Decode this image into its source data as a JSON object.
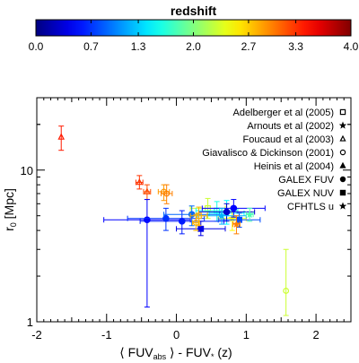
{
  "chart_data": [
    {
      "type": "colorbar",
      "title": "redshift",
      "ticks": [
        0.0,
        0.7,
        1.3,
        2.0,
        2.7,
        3.3,
        4.0
      ],
      "tick_labels": [
        "0.0",
        "0.7",
        "1.3",
        "2.0",
        "2.7",
        "3.3",
        "4.0"
      ],
      "range": [
        0.0,
        4.0
      ],
      "colormap": "jet"
    },
    {
      "type": "scatter",
      "xlabel": "⟨ FUV_abs ⟩ - FUV_* (z)",
      "xlabel_parts": {
        "open": "⟨ FUV",
        "sub": "abs",
        "mid": " ⟩ - FUV",
        "sub2": "*",
        "close": " (z)"
      },
      "ylabel": "r_0 [Mpc]",
      "ylabel_parts": {
        "main": "r",
        "sub": "0",
        "rest": " [Mpc]"
      },
      "xlim": [
        -2,
        2.5
      ],
      "ylim": [
        1,
        30
      ],
      "yscale": "log",
      "x_ticks": [
        -2,
        -1,
        0,
        1,
        2
      ],
      "x_tick_labels": [
        "-2",
        "-1",
        "0",
        "1",
        "2"
      ],
      "y_ticks": [
        1,
        10
      ],
      "y_tick_labels": [
        "1",
        "10"
      ],
      "legend_position": "top-right",
      "legend": [
        {
          "label": "Adelberger et al (2005)",
          "marker": "square-open"
        },
        {
          "label": "Arnouts et al (2002)",
          "marker": "star"
        },
        {
          "label": "Foucaud et al (2003)",
          "marker": "triangle-open"
        },
        {
          "label": "Giavalisco & Dickinson (2001)",
          "marker": "circle-open"
        },
        {
          "label": "Heinis et al (2004)",
          "marker": "triangle"
        },
        {
          "label": "GALEX FUV",
          "marker": "circle"
        },
        {
          "label": "GALEX NUV",
          "marker": "square"
        },
        {
          "label": "CFHTLS u",
          "marker": "star"
        }
      ],
      "points": [
        {
          "series": "Heinis et al (2004)",
          "marker": "triangle-open",
          "z": 3.4,
          "x": -1.65,
          "y": 16.5,
          "y_lo": 13.5,
          "y_hi": 19.5,
          "x_err": 0
        },
        {
          "series": "Foucaud et al (2003)",
          "marker": "triangle-open",
          "z": 3.3,
          "x": -0.53,
          "y": 8.3,
          "y_lo": 7.5,
          "y_hi": 9.2,
          "x_err": 0.05
        },
        {
          "series": "Foucaud et al (2003)",
          "marker": "triangle-open",
          "z": 3.2,
          "x": -0.42,
          "y": 7.2,
          "y_lo": 6.4,
          "y_hi": 8.0,
          "x_err": 0.05
        },
        {
          "series": "Giavalisco & Dickinson (2001)",
          "marker": "circle-open",
          "z": 2.9,
          "x": -0.18,
          "y": 7.2,
          "y_lo": 6.3,
          "y_hi": 8.0,
          "x_err": 0.08
        },
        {
          "series": "Giavalisco & Dickinson (2001)",
          "marker": "circle-open",
          "z": 3.0,
          "x": -0.14,
          "y": 7.0,
          "y_lo": 6.0,
          "y_hi": 8.0,
          "x_err": 0.08
        },
        {
          "series": "Adelberger et al (2005)",
          "marker": "square-open",
          "z": 2.3,
          "x": 0.45,
          "y": 5.6,
          "y_lo": 4.8,
          "y_hi": 6.5,
          "x_err": 0.25
        },
        {
          "series": "Adelberger et al (2005)",
          "marker": "square-open",
          "z": 1.6,
          "x": 0.58,
          "y": 5.4,
          "y_lo": 4.6,
          "y_hi": 6.2,
          "x_err": 0.3
        },
        {
          "series": "Arnouts et al (2002)",
          "marker": "star",
          "z": 1.5,
          "x": 0.72,
          "y": 5.2,
          "y_lo": 4.4,
          "y_hi": 6.3,
          "x_err": 0.25
        },
        {
          "series": "Arnouts et al (2002)",
          "marker": "star",
          "z": 2.5,
          "x": 0.8,
          "y": 4.8,
          "y_lo": 4.0,
          "y_hi": 5.6,
          "x_err": 0.2
        },
        {
          "series": "GALEX FUV",
          "marker": "circle",
          "z": 0.5,
          "x": -0.42,
          "y": 4.7,
          "y_lo": 1.25,
          "y_hi": 6.4,
          "x_err": 0.62
        },
        {
          "series": "GALEX FUV",
          "marker": "circle",
          "z": 0.7,
          "x": -0.15,
          "y": 4.8,
          "y_lo": 4.0,
          "y_hi": 5.6,
          "x_err": 0.55
        },
        {
          "series": "GALEX FUV",
          "marker": "circle",
          "z": 0.6,
          "x": 0.08,
          "y": 4.6,
          "y_lo": 3.8,
          "y_hi": 5.4,
          "x_err": 0.6
        },
        {
          "series": "GALEX FUV",
          "marker": "circle",
          "z": 0.9,
          "x": 0.22,
          "y": 5.1,
          "y_lo": 4.3,
          "y_hi": 5.8,
          "x_err": 0.4
        },
        {
          "series": "GALEX NUV",
          "marker": "square",
          "z": 0.4,
          "x": 0.35,
          "y": 4.1,
          "y_lo": 3.7,
          "y_hi": 4.6,
          "x_err": 0.35
        },
        {
          "series": "GALEX FUV",
          "marker": "circle",
          "z": 0.3,
          "x": 0.72,
          "y": 5.3,
          "y_lo": 4.6,
          "y_hi": 6.0,
          "x_err": 0.4
        },
        {
          "series": "GALEX FUV",
          "marker": "circle",
          "z": 0.5,
          "x": 0.82,
          "y": 5.6,
          "y_lo": 4.9,
          "y_hi": 6.4,
          "x_err": 0.45
        },
        {
          "series": "GALEX NUV",
          "marker": "square",
          "z": 0.8,
          "x": 0.9,
          "y": 4.7,
          "y_lo": 4.2,
          "y_hi": 5.2,
          "x_err": 0.3
        },
        {
          "series": "CFHTLS u",
          "marker": "star",
          "z": 1.2,
          "x": 0.65,
          "y": 5.0,
          "y_lo": 4.4,
          "y_hi": 5.6,
          "x_err": 0.35
        },
        {
          "series": "Adelberger et al (2005)",
          "marker": "square-open",
          "z": 2.8,
          "x": 0.32,
          "y": 5.0,
          "y_lo": 4.3,
          "y_hi": 5.7,
          "x_err": 0.12
        },
        {
          "series": "Arnouts et al (2002)",
          "marker": "star",
          "z": 3.0,
          "x": 0.86,
          "y": 4.4,
          "y_lo": 3.8,
          "y_hi": 5.0,
          "x_err": 0.05
        },
        {
          "series": "Giavalisco & Dickinson (2001)",
          "marker": "circle-open",
          "z": 2.8,
          "x": 0.28,
          "y": 4.5,
          "y_lo": 4.0,
          "y_hi": 5.1,
          "x_err": 0.05
        },
        {
          "series": "Arnouts et al (2002)",
          "marker": "star",
          "z": 1.8,
          "x": 1.05,
          "y": 5.1,
          "y_lo": 4.6,
          "y_hi": 5.6,
          "x_err": 0.05
        },
        {
          "series": "Giavalisco & Dickinson (2001)",
          "marker": "circle-open",
          "z": 2.3,
          "x": 1.57,
          "y": 1.6,
          "y_lo": 1.1,
          "y_hi": 3.0,
          "x_err": 0
        }
      ]
    }
  ]
}
